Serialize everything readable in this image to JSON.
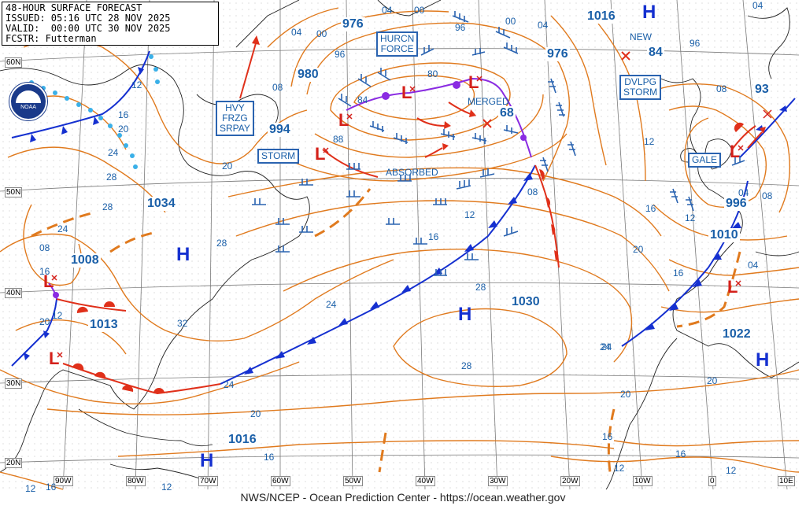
{
  "header": {
    "line1": "48-HOUR SURFACE FORECAST",
    "line2": "ISSUED: 05:16 UTC 28 NOV 2025",
    "line3": "VALID:  00:00 UTC 30 NOV 2025",
    "line4": "FCSTR: Futterman"
  },
  "footer": "NWS/NCEP - Ocean Prediction Center - https://ocean.weather.gov",
  "logo_text": "NOAA",
  "colors": {
    "isobar": "#e07a1e",
    "cold_front": "#1530d0",
    "warm_front": "#e0301a",
    "occluded": "#8a2be2",
    "trough": "#e07a1e",
    "wind": "#2a63b0",
    "labels": "#1a5fa8"
  },
  "lat_labels": [
    "60N",
    "50N",
    "40N",
    "30N",
    "20N"
  ],
  "lon_labels": [
    "90W",
    "80W",
    "70W",
    "60W",
    "50W",
    "40W",
    "30W",
    "20W",
    "10W",
    "0",
    "10E"
  ],
  "pressure_labels": [
    "976",
    "980",
    "994",
    "1034",
    "1008",
    "1013",
    "1016",
    "1030",
    "976",
    "1016",
    "996",
    "1010",
    "1022",
    "93",
    "84",
    "68"
  ],
  "annotations": {
    "hurcn_force": [
      "HURCN",
      "FORCE"
    ],
    "storm": "STORM",
    "hvy_frzg_spray": [
      "HVY",
      "FRZG",
      "SRPAY"
    ],
    "absorbed": "ABSORBED",
    "merged": "MERGED",
    "new": "NEW",
    "dvlpg_storm": [
      "DVLPG",
      "STORM"
    ],
    "gale": "GALE"
  },
  "highs_lows": {
    "high": "H",
    "low": "L"
  },
  "isobar_values": [
    "04",
    "00",
    "96",
    "04",
    "00",
    "08",
    "12",
    "16",
    "20",
    "24",
    "28",
    "12",
    "16",
    "20",
    "24",
    "28",
    "32",
    "28",
    "24",
    "20",
    "16",
    "12",
    "08",
    "04",
    "00",
    "96",
    "88",
    "84",
    "80",
    "12",
    "16",
    "20",
    "24",
    "28",
    "28",
    "24",
    "20",
    "16",
    "12",
    "08",
    "04",
    "12",
    "16",
    "20",
    "24",
    "16",
    "12",
    "16",
    "12",
    "08",
    "04",
    "96",
    "04",
    "08",
    "12",
    "16",
    "20"
  ]
}
